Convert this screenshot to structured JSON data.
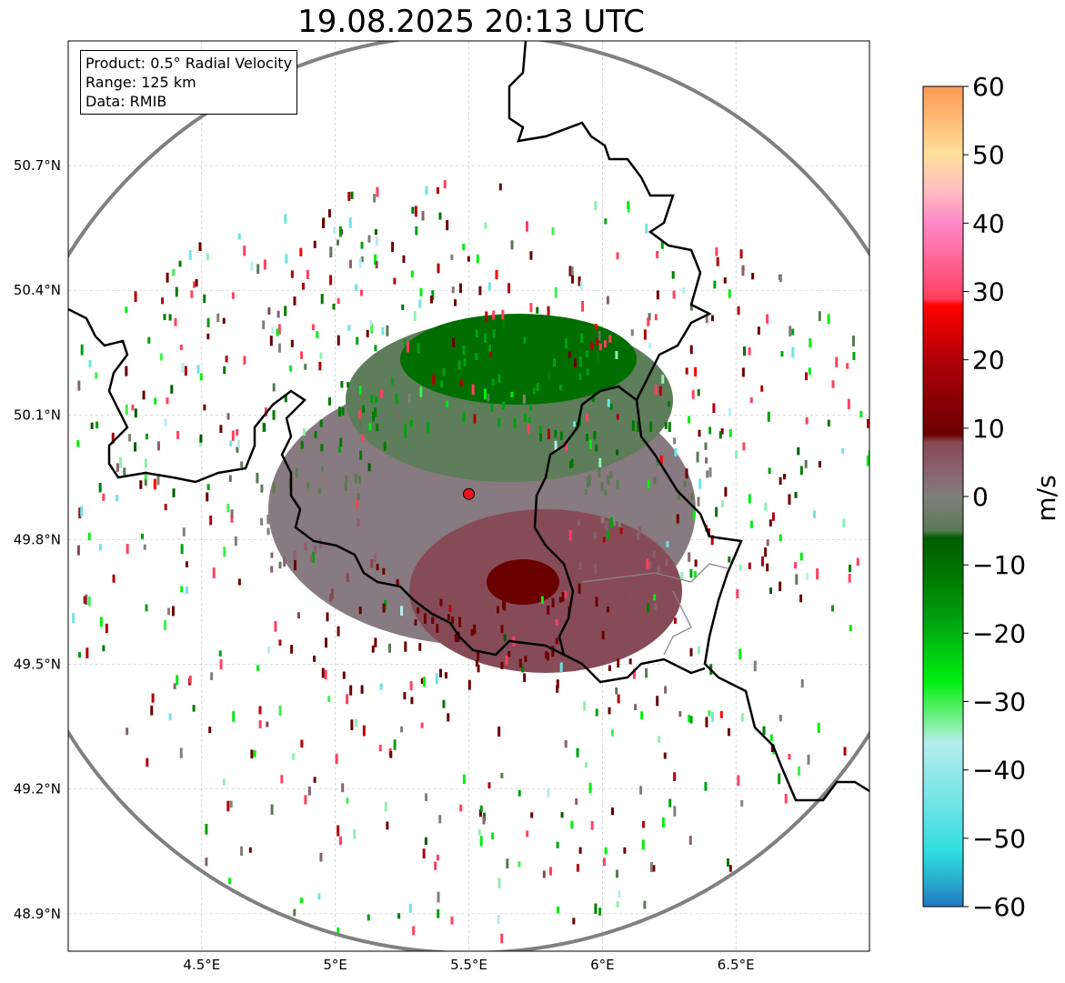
{
  "title": "19.08.2025 20:13 UTC",
  "info_box": {
    "product": "Product: 0.5° Radial Velocity",
    "range": "Range: 125 km",
    "data": "Data: RMIB"
  },
  "map": {
    "lon_range": [
      4.0,
      7.0
    ],
    "lat_range": [
      48.81,
      51.0
    ],
    "lon_ticks": [
      {
        "v": 4.5,
        "label": "4.5°E"
      },
      {
        "v": 5.0,
        "label": "5°E"
      },
      {
        "v": 5.5,
        "label": "5.5°E"
      },
      {
        "v": 6.0,
        "label": "6°E"
      },
      {
        "v": 6.5,
        "label": "6.5°E"
      }
    ],
    "lat_ticks": [
      {
        "v": 50.7,
        "label": "50.7°N"
      },
      {
        "v": 50.4,
        "label": "50.4°N"
      },
      {
        "v": 50.1,
        "label": "50.1°N"
      },
      {
        "v": 49.8,
        "label": "49.8°N"
      },
      {
        "v": 49.5,
        "label": "49.5°N"
      },
      {
        "v": 49.2,
        "label": "49.2°N"
      },
      {
        "v": 48.9,
        "label": "48.9°N"
      }
    ],
    "radar_site": {
      "lon": 5.5,
      "lat": 49.91,
      "color": "#e8141e"
    },
    "range_circle_color": "#808080"
  },
  "colorbar": {
    "label": "m/s",
    "min": -60,
    "max": 60,
    "ticks": [
      {
        "v": 60,
        "label": "60"
      },
      {
        "v": 50,
        "label": "50"
      },
      {
        "v": 40,
        "label": "40"
      },
      {
        "v": 30,
        "label": "30"
      },
      {
        "v": 20,
        "label": "20"
      },
      {
        "v": 10,
        "label": "10"
      },
      {
        "v": 0,
        "label": "0"
      },
      {
        "v": -10,
        "label": "−10"
      },
      {
        "v": -20,
        "label": "−20"
      },
      {
        "v": -30,
        "label": "−30"
      },
      {
        "v": -40,
        "label": "−40"
      },
      {
        "v": -50,
        "label": "−50"
      },
      {
        "v": -60,
        "label": "−60"
      }
    ],
    "stops": [
      [
        -60,
        "#1f78c0"
      ],
      [
        -56,
        "#2aaed0"
      ],
      [
        -52,
        "#30dde0"
      ],
      [
        -45,
        "#70e4e6"
      ],
      [
        -36,
        "#b5ecf0"
      ],
      [
        -34,
        "#90f0b0"
      ],
      [
        -30,
        "#40f050"
      ],
      [
        -27,
        "#00ee10"
      ],
      [
        -18,
        "#00a010"
      ],
      [
        -12,
        "#007a00"
      ],
      [
        -6,
        "#005c00"
      ],
      [
        -5,
        "#5a7a55"
      ],
      [
        0,
        "#80807a"
      ],
      [
        4,
        "#8a6070"
      ],
      [
        8,
        "#884850"
      ],
      [
        9,
        "#6a0000"
      ],
      [
        20,
        "#b00008"
      ],
      [
        28,
        "#ff0000"
      ],
      [
        29,
        "#ff4060"
      ],
      [
        40,
        "#ff88c8"
      ],
      [
        45,
        "#ffc0c0"
      ],
      [
        50,
        "#ffe09a"
      ],
      [
        60,
        "#ff9a55"
      ]
    ]
  }
}
